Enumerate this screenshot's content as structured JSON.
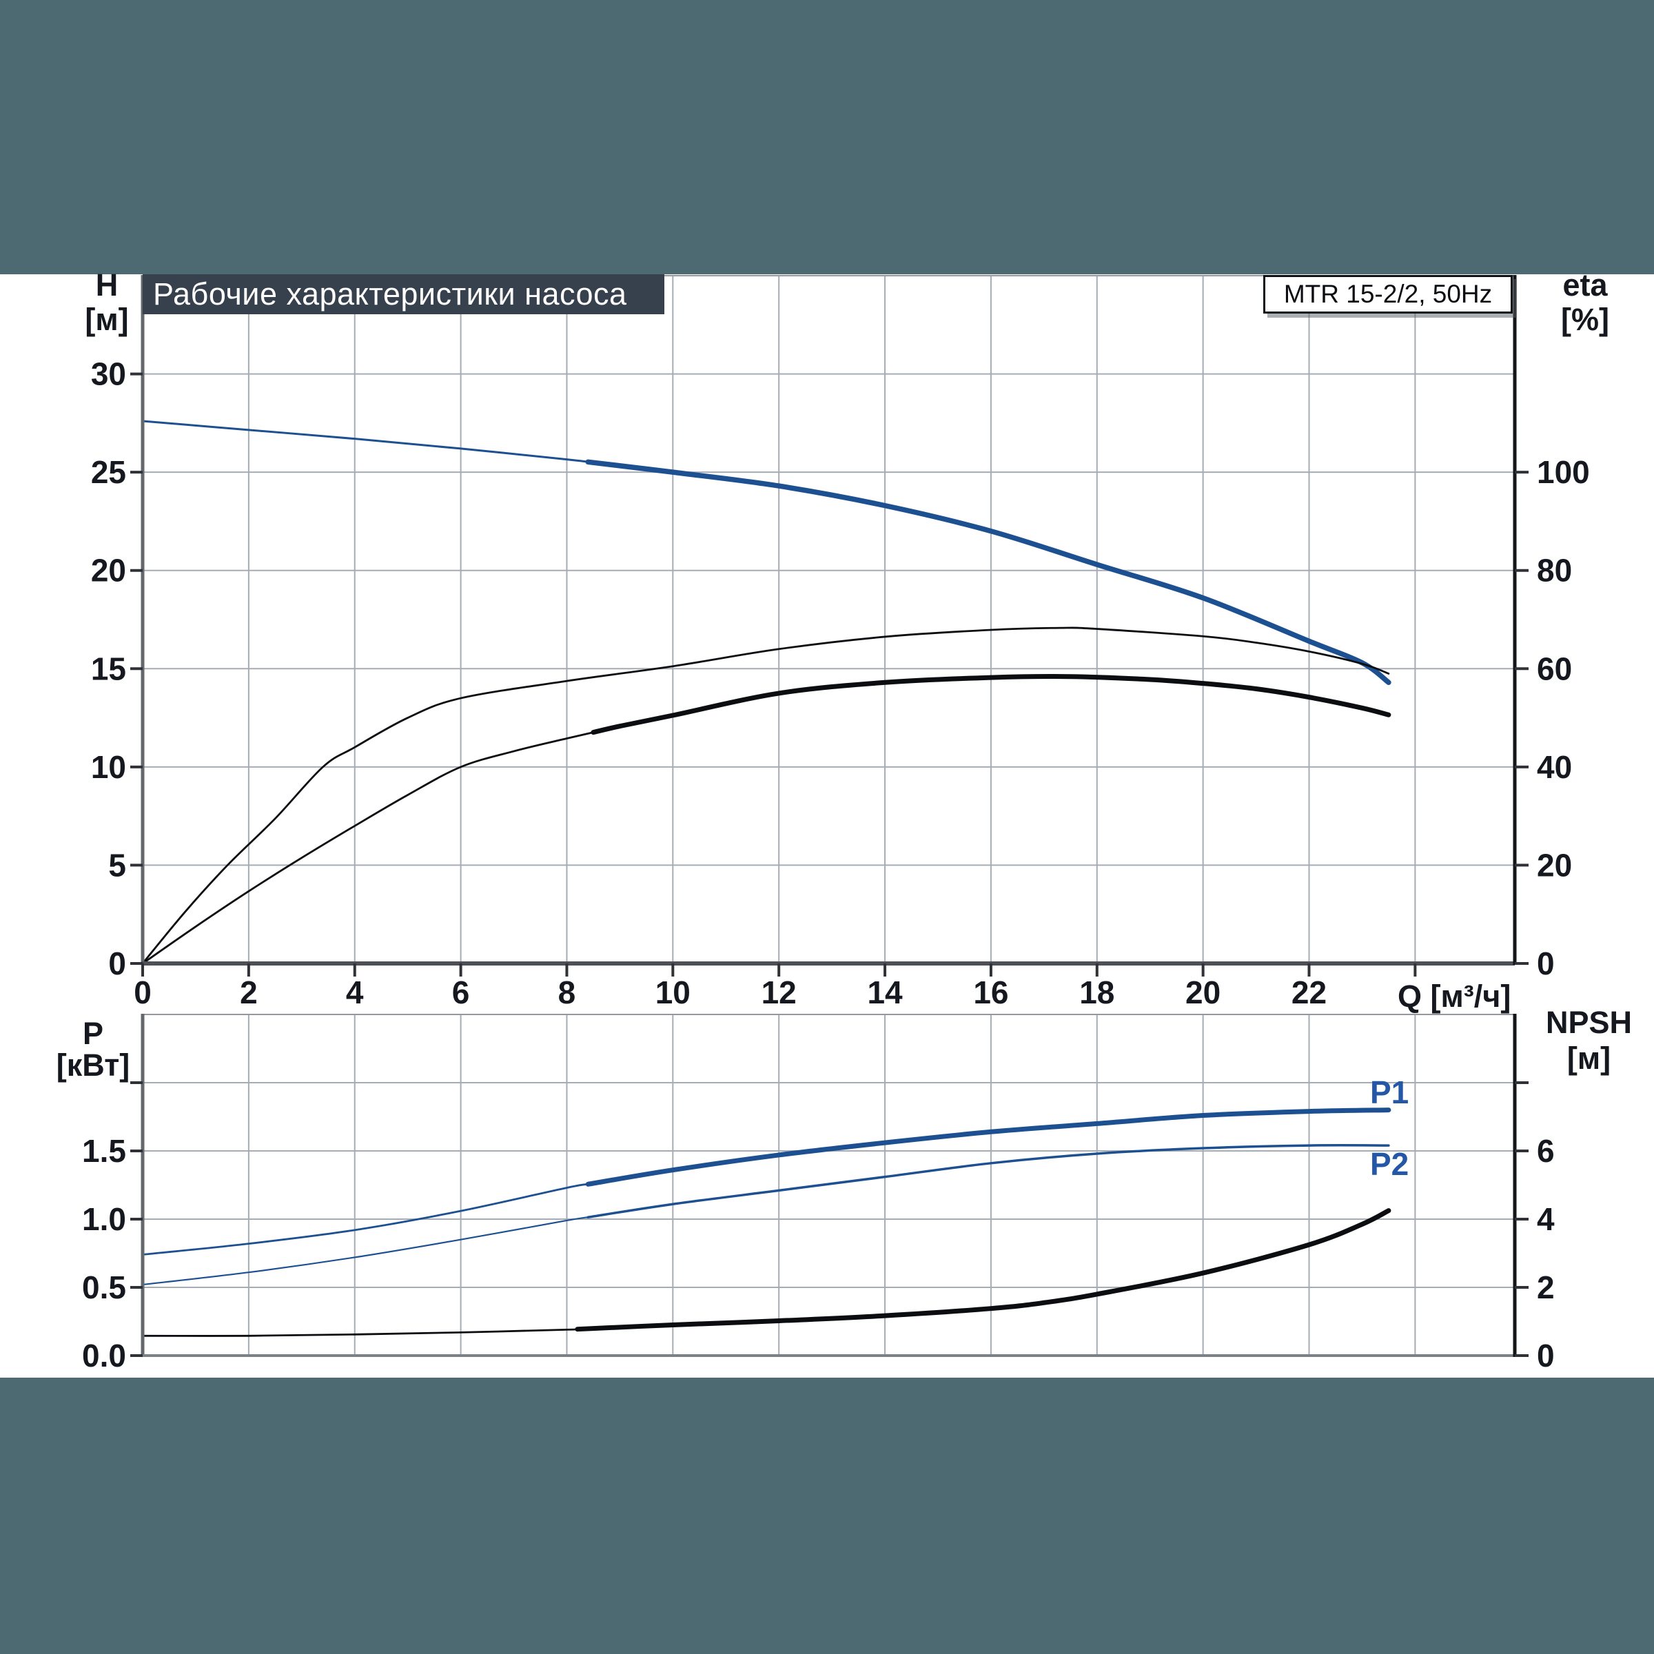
{
  "page": {
    "background": "#4d6a73",
    "panel_background": "#ffffff",
    "title_bar_color": "#37414e",
    "grid_color": "#a6acb4",
    "accent_blue": "#1d5091",
    "curve_black": "#0b0d10",
    "label_blue": "#2458a6"
  },
  "header": {
    "title": "Рабочие характеристики насоса",
    "badge": "MTR 15-2/2, 50Hz"
  },
  "labels": {
    "h_axis": "H",
    "h_unit": "[м]",
    "eta_axis": "eta",
    "eta_unit": "[%]",
    "q_axis": "Q [м³/ч]",
    "p_axis": "P",
    "p_unit": "[кВт]",
    "npsh_axis": "NPSH",
    "npsh_unit": "[м]",
    "p1": "P1",
    "p2": "P2"
  },
  "chart_data": [
    {
      "id": "performance",
      "type": "line",
      "title": "Рабочие характеристики насоса",
      "x_axis": {
        "label": "Q [м³/ч]",
        "min": 0,
        "max": 25.88,
        "tick_values": [
          0,
          2,
          4,
          6,
          8,
          10,
          12,
          14,
          16,
          18,
          20,
          22
        ],
        "tick_labels": [
          "0",
          "2",
          "4",
          "6",
          "8",
          "10",
          "12",
          "14",
          "16",
          "18",
          "20",
          "22"
        ],
        "unlabeled_ticks": [
          24
        ],
        "gridlines": [
          2,
          4,
          6,
          8,
          10,
          12,
          14,
          16,
          18,
          20,
          22,
          24
        ]
      },
      "y_left": {
        "label": "H [м]",
        "min": 0,
        "max": 35,
        "tick_values": [
          0,
          5,
          10,
          15,
          20,
          25,
          30
        ],
        "tick_labels": [
          "0",
          "5",
          "10",
          "15",
          "20",
          "25",
          "30"
        ],
        "unlabeled_ticks": [],
        "gridlines": [
          5,
          10,
          15,
          20,
          25,
          30
        ]
      },
      "y_right": {
        "label": "eta [%]",
        "min": 0,
        "max": 140,
        "tick_values": [
          0,
          20,
          40,
          60,
          80,
          100
        ],
        "tick_labels": [
          "0",
          "20",
          "40",
          "60",
          "80",
          "100"
        ],
        "unlabeled_ticks": []
      },
      "series": [
        {
          "name": "H",
          "axis": "left",
          "color": "#1d5091",
          "width_thin": 3,
          "width_bold": 7.5,
          "bold_from": 8.4,
          "points": [
            [
              0,
              27.6
            ],
            [
              2,
              27.15
            ],
            [
              4,
              26.7
            ],
            [
              6,
              26.2
            ],
            [
              8,
              25.65
            ],
            [
              10,
              25.0
            ],
            [
              12,
              24.3
            ],
            [
              14,
              23.3
            ],
            [
              16,
              22.0
            ],
            [
              18,
              20.3
            ],
            [
              20,
              18.6
            ],
            [
              22,
              16.4
            ],
            [
              23,
              15.3
            ],
            [
              23.5,
              14.3
            ]
          ]
        },
        {
          "name": "eta1",
          "axis": "right",
          "color": "#0b0d10",
          "width_thin": 2.8,
          "width_bold": 2.8,
          "bold_from": null,
          "points": [
            [
              0,
              0
            ],
            [
              0.8,
              10.5
            ],
            [
              1.6,
              20
            ],
            [
              2.5,
              29.5
            ],
            [
              3.4,
              40
            ],
            [
              4,
              44
            ],
            [
              5,
              50
            ],
            [
              6,
              54
            ],
            [
              8,
              57.5
            ],
            [
              10,
              60.5
            ],
            [
              12,
              64
            ],
            [
              14,
              66.5
            ],
            [
              16,
              67.9
            ],
            [
              17.3,
              68.3
            ],
            [
              18,
              68.1
            ],
            [
              20,
              66.6
            ],
            [
              21,
              65.3
            ],
            [
              22,
              63.5
            ],
            [
              23,
              61
            ],
            [
              23.5,
              59
            ]
          ]
        },
        {
          "name": "eta2",
          "axis": "right",
          "color": "#0b0d10",
          "width_thin": 2.8,
          "width_bold": 7,
          "bold_from": 8.5,
          "points": [
            [
              0,
              0
            ],
            [
              1,
              7.5
            ],
            [
              2,
              14.7
            ],
            [
              3,
              21.5
            ],
            [
              4,
              28
            ],
            [
              5,
              34.3
            ],
            [
              6,
              40
            ],
            [
              7,
              43.2
            ],
            [
              8,
              45.8
            ],
            [
              9,
              48.3
            ],
            [
              10,
              50.5
            ],
            [
              12,
              55
            ],
            [
              14,
              57.2
            ],
            [
              16,
              58.2
            ],
            [
              17.5,
              58.4
            ],
            [
              19,
              57.8
            ],
            [
              20,
              57
            ],
            [
              21,
              55.9
            ],
            [
              22,
              54.2
            ],
            [
              23,
              52
            ],
            [
              23.5,
              50.6
            ]
          ]
        }
      ]
    },
    {
      "id": "power_npsh",
      "type": "line",
      "x_axis": {
        "label": "",
        "min": 0,
        "max": 25.88,
        "tick_values": [],
        "tick_labels": [],
        "unlabeled_ticks": [],
        "gridlines": [
          2,
          4,
          6,
          8,
          10,
          12,
          14,
          16,
          18,
          20,
          22,
          24
        ]
      },
      "y_left": {
        "label": "P [кВт]",
        "min": 0,
        "max": 2.5,
        "tick_values": [
          0,
          0.5,
          1.0,
          1.5
        ],
        "tick_labels": [
          "0.0",
          "0.5",
          "1.0",
          "1.5"
        ],
        "unlabeled_ticks": [
          2.0
        ],
        "gridlines": [
          0.5,
          1.0,
          1.5,
          2.0
        ]
      },
      "y_right": {
        "label": "NPSH [м]",
        "min": 0,
        "max": 10,
        "tick_values": [
          0,
          2,
          4,
          6
        ],
        "tick_labels": [
          "0",
          "2",
          "4",
          "6"
        ],
        "unlabeled_ticks": [
          8
        ]
      },
      "series": [
        {
          "name": "P1",
          "axis": "left",
          "color": "#1d5091",
          "width_thin": 2.8,
          "width_bold": 7,
          "bold_from": 8.4,
          "points": [
            [
              0,
              0.74
            ],
            [
              2,
              0.82
            ],
            [
              4,
              0.92
            ],
            [
              6,
              1.06
            ],
            [
              8,
              1.23
            ],
            [
              10,
              1.36
            ],
            [
              12,
              1.47
            ],
            [
              14,
              1.56
            ],
            [
              16,
              1.64
            ],
            [
              18,
              1.7
            ],
            [
              20,
              1.76
            ],
            [
              22,
              1.79
            ],
            [
              23.5,
              1.8
            ]
          ]
        },
        {
          "name": "P2",
          "axis": "left",
          "color": "#1d5091",
          "width_thin": 2.2,
          "width_bold": 3.5,
          "bold_from": 8.4,
          "points": [
            [
              0,
              0.52
            ],
            [
              2,
              0.61
            ],
            [
              4,
              0.72
            ],
            [
              6,
              0.85
            ],
            [
              8,
              0.99
            ],
            [
              10,
              1.11
            ],
            [
              12,
              1.21
            ],
            [
              14,
              1.31
            ],
            [
              16,
              1.41
            ],
            [
              18,
              1.48
            ],
            [
              20,
              1.52
            ],
            [
              22,
              1.54
            ],
            [
              23.5,
              1.54
            ]
          ]
        },
        {
          "name": "NPSH",
          "axis": "right",
          "color": "#0b0d10",
          "width_thin": 2.8,
          "width_bold": 7,
          "bold_from": 8.2,
          "points": [
            [
              0,
              0.58
            ],
            [
              2,
              0.58
            ],
            [
              4,
              0.62
            ],
            [
              6,
              0.68
            ],
            [
              8,
              0.76
            ],
            [
              10,
              0.9
            ],
            [
              12,
              1.02
            ],
            [
              14,
              1.17
            ],
            [
              16,
              1.38
            ],
            [
              17,
              1.55
            ],
            [
              18,
              1.8
            ],
            [
              20,
              2.42
            ],
            [
              22,
              3.25
            ],
            [
              23,
              3.85
            ],
            [
              23.5,
              4.25
            ]
          ]
        }
      ]
    }
  ]
}
